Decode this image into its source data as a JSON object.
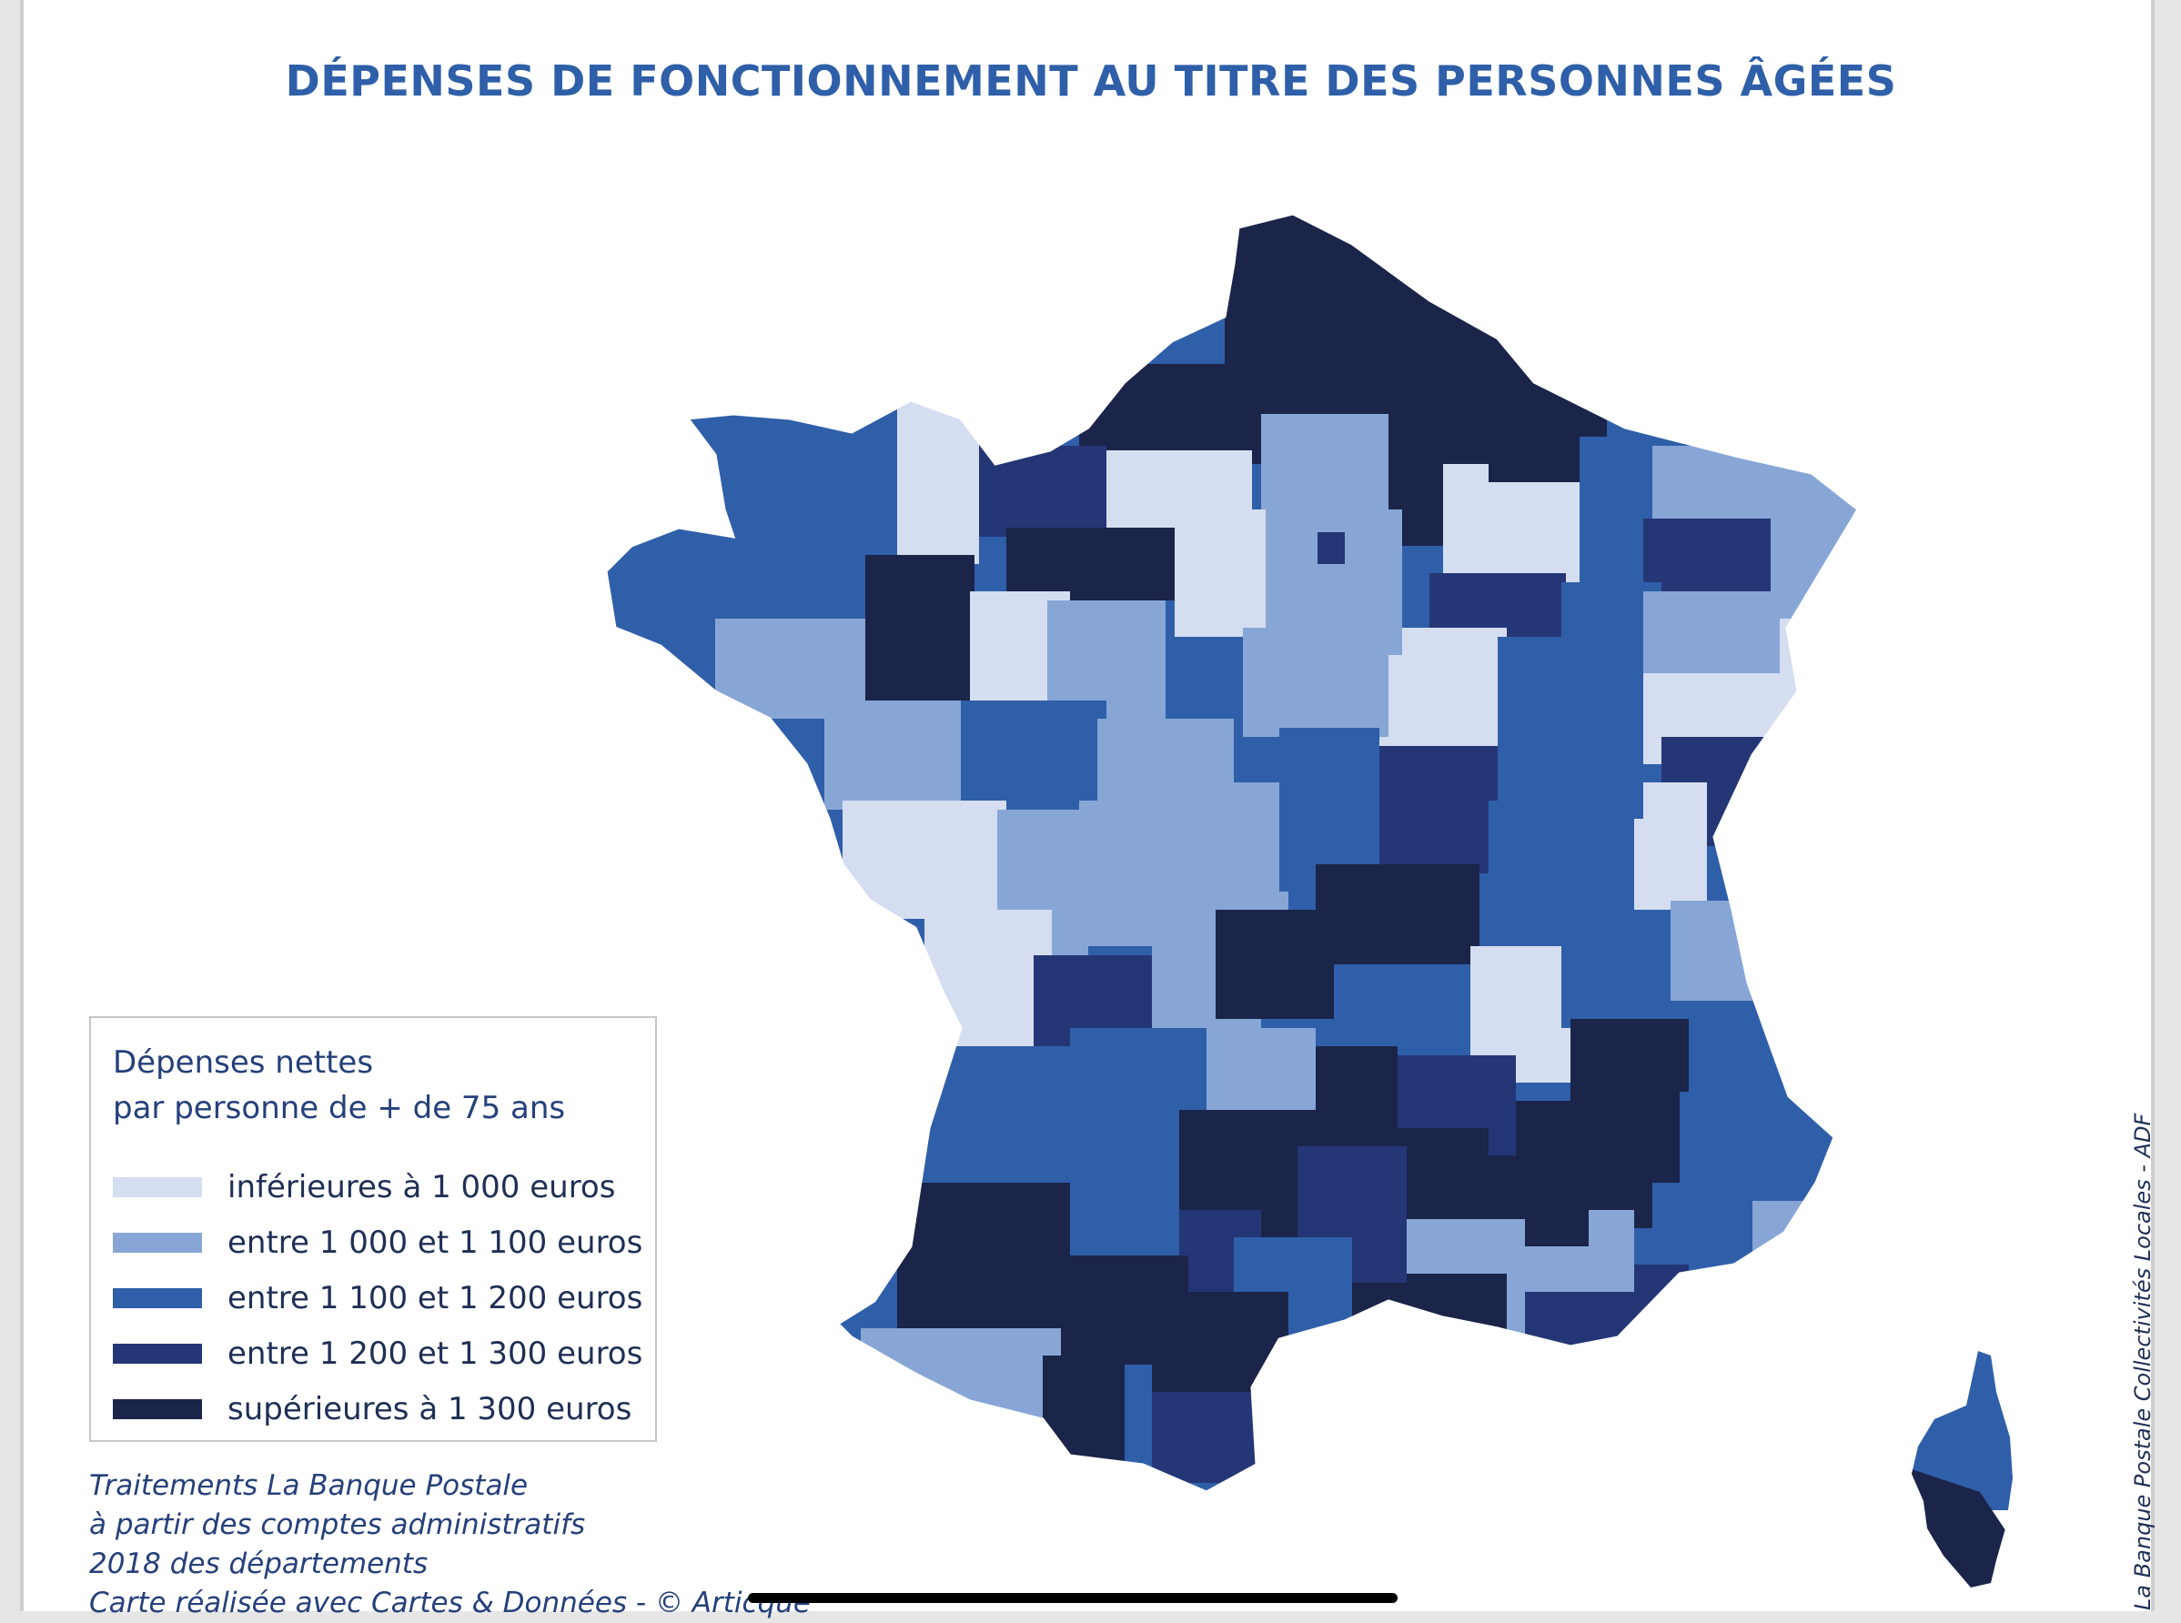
{
  "map": {
    "title": "DÉPENSES DE FONCTIONNEMENT AU TITRE DES PERSONNES ÂGÉES",
    "category_colors": {
      "c1": "#d5ddf0",
      "c2": "#87a6d6",
      "c3": "#2f5fa9",
      "c4": "#253677",
      "c5": "#1b2449"
    },
    "regions_shown": [
      "mainland-france-departments",
      "corsica"
    ]
  },
  "legend": {
    "title_line1": "Dépenses nettes",
    "title_line2": "par personne de + de 75 ans",
    "items": [
      {
        "label": "inférieures à 1 000 euros",
        "color": "#d5ddf0"
      },
      {
        "label": "entre 1 000 et 1 100 euros",
        "color": "#87a6d6"
      },
      {
        "label": "entre 1 100 et 1 200 euros",
        "color": "#2f5fa9"
      },
      {
        "label": "entre 1 200 et 1 300 euros",
        "color": "#253677"
      },
      {
        "label": "supérieures à 1 300 euros",
        "color": "#1b2449"
      }
    ]
  },
  "source": {
    "line1": "Traitements La Banque Postale",
    "line2": "à partir des comptes administratifs",
    "line3": "2018 des départements",
    "line4": "Carte réalisée avec Cartes & Données - © Articque"
  },
  "credit": "La Banque Postale Collectivités Locales - ADF"
}
